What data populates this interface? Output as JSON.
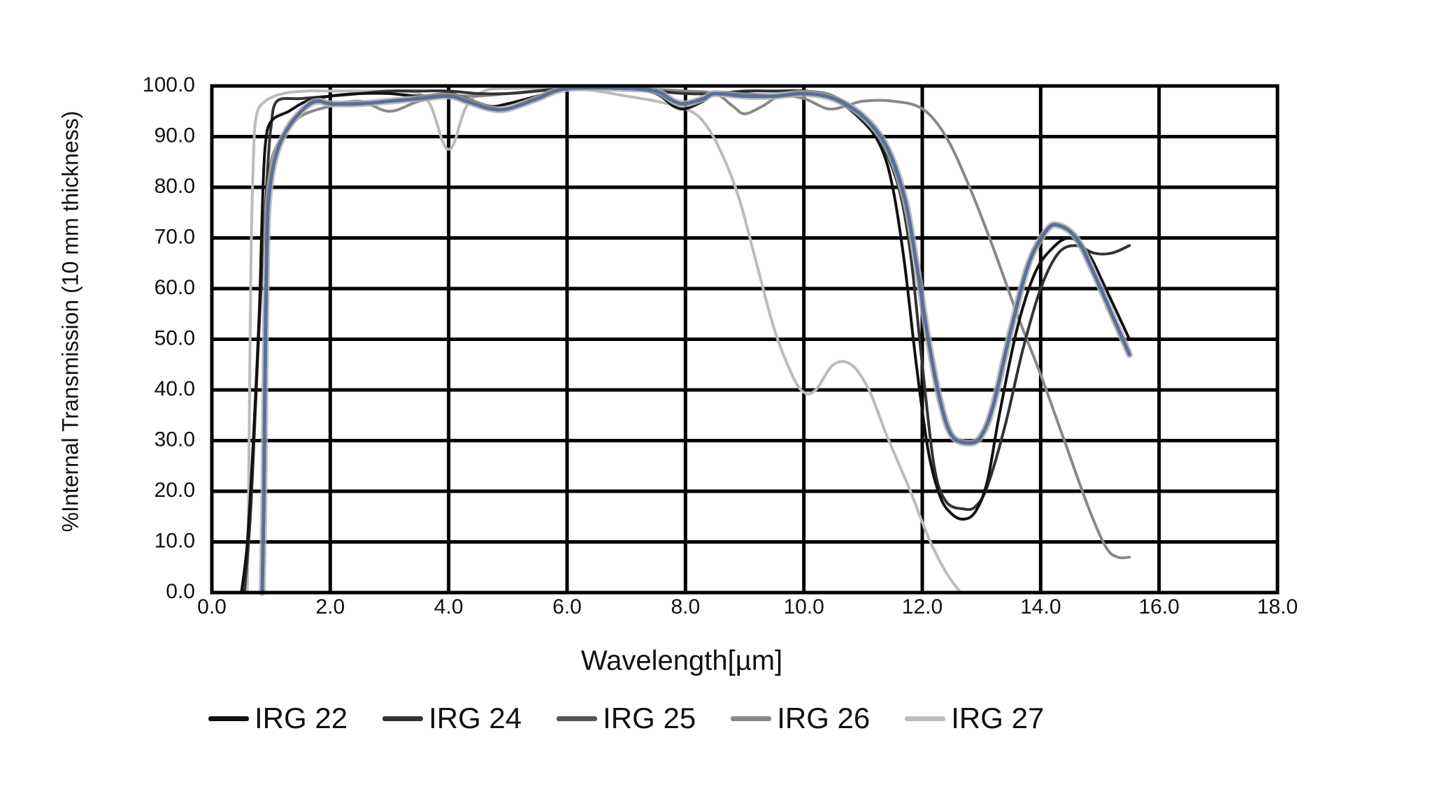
{
  "chart_data": {
    "type": "line",
    "title": "",
    "xlabel": "Wavelength[µm]",
    "ylabel": "%Internal Transmission (10 mm thickness)",
    "xlim": [
      0,
      18
    ],
    "ylim": [
      0,
      100
    ],
    "grid": true,
    "legend_position": "bottom",
    "x_ticks": [
      "0.0",
      "2.0",
      "4.0",
      "6.0",
      "8.0",
      "10.0",
      "12.0",
      "14.0",
      "16.0",
      "18.0"
    ],
    "y_ticks": [
      "0.0",
      "10.0",
      "20.0",
      "30.0",
      "40.0",
      "50.0",
      "60.0",
      "70.0",
      "80.0",
      "90.0",
      "100.0"
    ],
    "series": [
      {
        "name": "IRG 22",
        "color": "#111111",
        "width": 4,
        "points": [
          [
            0.5,
            0
          ],
          [
            0.6,
            10
          ],
          [
            0.7,
            30
          ],
          [
            0.8,
            55
          ],
          [
            0.85,
            75
          ],
          [
            0.9,
            88
          ],
          [
            1.0,
            93
          ],
          [
            1.3,
            95
          ],
          [
            1.6,
            97
          ],
          [
            2.0,
            98
          ],
          [
            2.5,
            98.5
          ],
          [
            3.0,
            98.5
          ],
          [
            3.5,
            98
          ],
          [
            4.0,
            98.5
          ],
          [
            4.3,
            97.5
          ],
          [
            4.7,
            96
          ],
          [
            5.0,
            96.5
          ],
          [
            5.5,
            98
          ],
          [
            6.0,
            99.5
          ],
          [
            7.0,
            99.5
          ],
          [
            7.5,
            98.5
          ],
          [
            7.8,
            96
          ],
          [
            8.0,
            95.5
          ],
          [
            8.3,
            97
          ],
          [
            8.5,
            98.5
          ],
          [
            9.0,
            98.5
          ],
          [
            9.5,
            98
          ],
          [
            10.0,
            98.5
          ],
          [
            10.5,
            97.5
          ],
          [
            11.0,
            93
          ],
          [
            11.3,
            88
          ],
          [
            11.5,
            80
          ],
          [
            11.7,
            65
          ],
          [
            11.9,
            45
          ],
          [
            12.1,
            28
          ],
          [
            12.3,
            19
          ],
          [
            12.5,
            15.5
          ],
          [
            12.7,
            14.5
          ],
          [
            12.9,
            16
          ],
          [
            13.1,
            22
          ],
          [
            13.3,
            35
          ],
          [
            13.6,
            52
          ],
          [
            13.9,
            63
          ],
          [
            14.2,
            68
          ],
          [
            14.5,
            70
          ],
          [
            14.8,
            67
          ],
          [
            15.1,
            60
          ],
          [
            15.5,
            50
          ]
        ]
      },
      {
        "name": "IRG 24",
        "color": "#333333",
        "width": 4,
        "points": [
          [
            0.55,
            0
          ],
          [
            0.65,
            15
          ],
          [
            0.75,
            40
          ],
          [
            0.85,
            65
          ],
          [
            0.95,
            85
          ],
          [
            1.0,
            92
          ],
          [
            1.1,
            97
          ],
          [
            1.5,
            97.5
          ],
          [
            2.0,
            98
          ],
          [
            2.5,
            98.5
          ],
          [
            3.0,
            99
          ],
          [
            3.5,
            99
          ],
          [
            4.0,
            99
          ],
          [
            4.5,
            98.5
          ],
          [
            5.0,
            98.5
          ],
          [
            5.5,
            99
          ],
          [
            6.0,
            99.5
          ],
          [
            7.0,
            99.5
          ],
          [
            7.5,
            99
          ],
          [
            8.0,
            98.5
          ],
          [
            8.5,
            98.5
          ],
          [
            9.0,
            99
          ],
          [
            9.5,
            99
          ],
          [
            10.0,
            99
          ],
          [
            10.5,
            98
          ],
          [
            11.0,
            94
          ],
          [
            11.3,
            89
          ],
          [
            11.6,
            80
          ],
          [
            11.8,
            67
          ],
          [
            12.0,
            45
          ],
          [
            12.2,
            25
          ],
          [
            12.4,
            18
          ],
          [
            12.7,
            16.5
          ],
          [
            12.9,
            17
          ],
          [
            13.1,
            21
          ],
          [
            13.4,
            33
          ],
          [
            13.7,
            48
          ],
          [
            14.0,
            60
          ],
          [
            14.3,
            67
          ],
          [
            14.6,
            68.5
          ],
          [
            14.9,
            67
          ],
          [
            15.2,
            67
          ],
          [
            15.5,
            68.5
          ]
        ]
      },
      {
        "name": "IRG 25",
        "color": "#5a6e98",
        "halo": "#b0b0b0",
        "width": 5,
        "points": [
          [
            0.85,
            0
          ],
          [
            0.88,
            20
          ],
          [
            0.9,
            45
          ],
          [
            0.93,
            70
          ],
          [
            0.98,
            80
          ],
          [
            1.1,
            87
          ],
          [
            1.3,
            92
          ],
          [
            1.6,
            96
          ],
          [
            1.8,
            97
          ],
          [
            2.0,
            96.5
          ],
          [
            2.5,
            96.5
          ],
          [
            3.0,
            97
          ],
          [
            3.5,
            97.5
          ],
          [
            4.0,
            98
          ],
          [
            4.3,
            97
          ],
          [
            4.7,
            95.5
          ],
          [
            5.0,
            95.5
          ],
          [
            5.5,
            97.5
          ],
          [
            6.0,
            99.5
          ],
          [
            7.0,
            99.5
          ],
          [
            7.5,
            99
          ],
          [
            7.8,
            97
          ],
          [
            8.0,
            96.5
          ],
          [
            8.3,
            97.5
          ],
          [
            8.5,
            98.5
          ],
          [
            9.0,
            98
          ],
          [
            9.5,
            98
          ],
          [
            10.0,
            98.5
          ],
          [
            10.5,
            97.5
          ],
          [
            11.0,
            94
          ],
          [
            11.4,
            88
          ],
          [
            11.7,
            78
          ],
          [
            11.9,
            65
          ],
          [
            12.1,
            50
          ],
          [
            12.3,
            38
          ],
          [
            12.5,
            31
          ],
          [
            12.8,
            29.5
          ],
          [
            13.0,
            31
          ],
          [
            13.2,
            37
          ],
          [
            13.5,
            52
          ],
          [
            13.8,
            65
          ],
          [
            14.1,
            71.5
          ],
          [
            14.3,
            72.5
          ],
          [
            14.6,
            70
          ],
          [
            14.9,
            63
          ],
          [
            15.2,
            55
          ],
          [
            15.5,
            47
          ]
        ]
      },
      {
        "name": "IRG 26",
        "color": "#888888",
        "width": 4,
        "points": [
          [
            0.85,
            0
          ],
          [
            0.9,
            40
          ],
          [
            0.95,
            75
          ],
          [
            1.0,
            85
          ],
          [
            1.2,
            90
          ],
          [
            1.5,
            94
          ],
          [
            2.0,
            96
          ],
          [
            2.5,
            97
          ],
          [
            3.0,
            95
          ],
          [
            3.5,
            97
          ],
          [
            4.0,
            98
          ],
          [
            4.5,
            98
          ],
          [
            5.0,
            98.5
          ],
          [
            6.0,
            99.5
          ],
          [
            7.0,
            99.5
          ],
          [
            8.0,
            99
          ],
          [
            8.5,
            98.5
          ],
          [
            8.8,
            96
          ],
          [
            9.0,
            94.5
          ],
          [
            9.3,
            96
          ],
          [
            9.6,
            98
          ],
          [
            10.0,
            97.5
          ],
          [
            10.4,
            95.5
          ],
          [
            10.7,
            96
          ],
          [
            11.0,
            97
          ],
          [
            11.5,
            97
          ],
          [
            12.0,
            95.5
          ],
          [
            12.4,
            90
          ],
          [
            12.8,
            80
          ],
          [
            13.2,
            68
          ],
          [
            13.6,
            55
          ],
          [
            14.0,
            43
          ],
          [
            14.4,
            30
          ],
          [
            14.8,
            17
          ],
          [
            15.1,
            9
          ],
          [
            15.3,
            7
          ],
          [
            15.5,
            7
          ]
        ]
      },
      {
        "name": "IRG 27",
        "color": "#bbbbbb",
        "width": 4,
        "points": [
          [
            0.6,
            0
          ],
          [
            0.63,
            30
          ],
          [
            0.66,
            65
          ],
          [
            0.7,
            85
          ],
          [
            0.75,
            94
          ],
          [
            0.9,
            97
          ],
          [
            1.2,
            98.5
          ],
          [
            1.6,
            99
          ],
          [
            2.0,
            99
          ],
          [
            2.5,
            99
          ],
          [
            3.0,
            99
          ],
          [
            3.5,
            98.5
          ],
          [
            3.7,
            96
          ],
          [
            3.9,
            89
          ],
          [
            4.0,
            87.5
          ],
          [
            4.1,
            89
          ],
          [
            4.3,
            96
          ],
          [
            4.6,
            99
          ],
          [
            5.0,
            99.5
          ],
          [
            6.0,
            99.5
          ],
          [
            6.5,
            99
          ],
          [
            7.0,
            98
          ],
          [
            7.5,
            97
          ],
          [
            8.0,
            95.5
          ],
          [
            8.3,
            93
          ],
          [
            8.6,
            87
          ],
          [
            8.9,
            78
          ],
          [
            9.2,
            65
          ],
          [
            9.5,
            52
          ],
          [
            9.8,
            43
          ],
          [
            10.0,
            39.5
          ],
          [
            10.2,
            40
          ],
          [
            10.5,
            45
          ],
          [
            10.8,
            45
          ],
          [
            11.1,
            40
          ],
          [
            11.4,
            31
          ],
          [
            11.8,
            20
          ],
          [
            12.1,
            11
          ],
          [
            12.4,
            4
          ],
          [
            12.65,
            0
          ]
        ]
      }
    ]
  },
  "legend": {
    "items": [
      {
        "label": "IRG 22",
        "color": "#111111"
      },
      {
        "label": "IRG 24",
        "color": "#333333"
      },
      {
        "label": "IRG 25",
        "color": "#555555"
      },
      {
        "label": "IRG 26",
        "color": "#888888"
      },
      {
        "label": "IRG 27",
        "color": "#bbbbbb"
      }
    ]
  }
}
